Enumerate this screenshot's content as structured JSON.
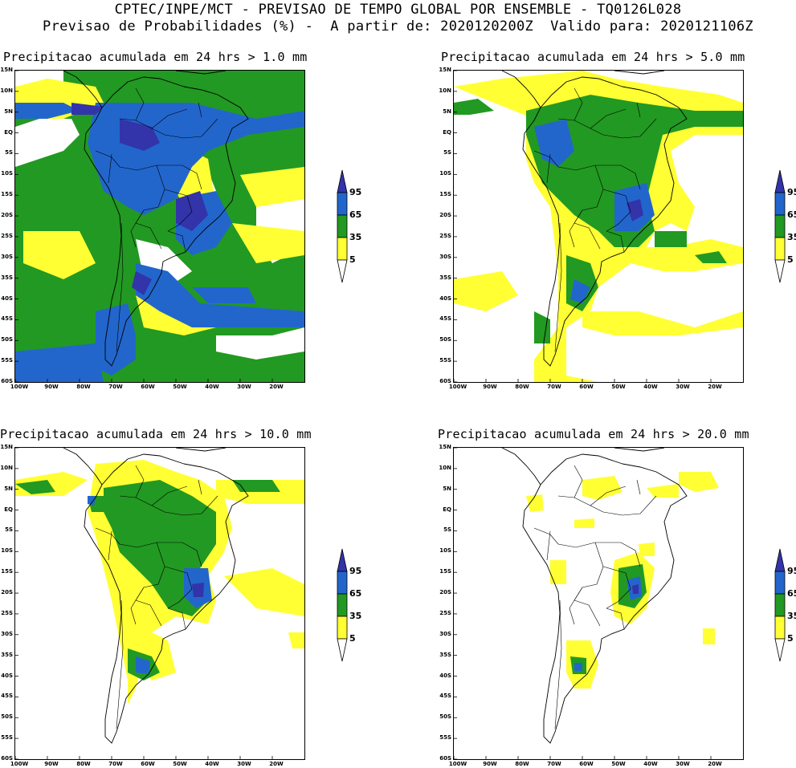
{
  "header": {
    "line1": "CPTEC/INPE/MCT - PREVISAO DE TEMPO GLOBAL POR ENSEMBLE - TQ0126L028",
    "line2": "Previsao de Probabilidades (%) -  A partir de: 2020120200Z  Valido para: 2020121106Z"
  },
  "colors": {
    "yellow": "#ffff33",
    "green": "#229922",
    "blue": "#2266cc",
    "purple": "#3333aa",
    "white": "#ffffff"
  },
  "colorbar": {
    "labels": [
      "95",
      "65",
      "35",
      "5"
    ]
  },
  "lat_labels": [
    "15N",
    "10N",
    "5N",
    "EQ",
    "5S",
    "10S",
    "15S",
    "20S",
    "25S",
    "30S",
    "35S",
    "40S",
    "45S",
    "50S",
    "55S",
    "60S"
  ],
  "lon_labels": [
    "100W",
    "90W",
    "80W",
    "70W",
    "60W",
    "50W",
    "40W",
    "30W",
    "20W"
  ],
  "panels": [
    {
      "id": "p1",
      "title": "Precipitacao acumulada em 24 hrs > 1.0 mm"
    },
    {
      "id": "p2",
      "title": "Precipitacao acumulada em 24 hrs > 5.0 mm"
    },
    {
      "id": "p3",
      "title": "Precipitacao acumulada em 24 hrs > 10.0 mm"
    },
    {
      "id": "p4",
      "title": "Precipitacao acumulada em 24 hrs > 20.0 mm"
    }
  ]
}
